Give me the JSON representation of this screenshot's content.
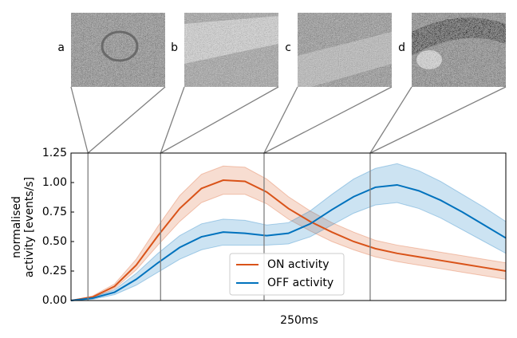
{
  "chart_data": {
    "type": "line",
    "ylabel": [
      "normalised",
      "activity [events/s]"
    ],
    "xlabel": "250ms",
    "xlim": [
      0,
      100
    ],
    "ylim": [
      0,
      1.25
    ],
    "yticks": [
      {
        "value": 0,
        "label": "0.00"
      },
      {
        "value": 0.25,
        "label": "0.25"
      },
      {
        "value": 0.5,
        "label": "0.50"
      },
      {
        "value": 0.75,
        "label": "0.75"
      },
      {
        "value": 1,
        "label": "1.00"
      },
      {
        "value": 1.25,
        "label": "1.25"
      }
    ],
    "x": [
      0,
      5,
      10,
      15,
      20,
      25,
      30,
      35,
      40,
      45,
      50,
      55,
      60,
      65,
      70,
      75,
      80,
      85,
      90,
      95,
      100
    ],
    "series": [
      {
        "name": "ON activity",
        "color": "#d95319",
        "values": [
          0,
          0.03,
          0.12,
          0.3,
          0.55,
          0.78,
          0.95,
          1.02,
          1.01,
          0.92,
          0.78,
          0.67,
          0.58,
          0.5,
          0.44,
          0.4,
          0.37,
          0.34,
          0.31,
          0.28,
          0.25
        ],
        "lower": [
          0,
          0.02,
          0.1,
          0.26,
          0.47,
          0.67,
          0.83,
          0.9,
          0.9,
          0.82,
          0.69,
          0.59,
          0.5,
          0.43,
          0.37,
          0.33,
          0.3,
          0.27,
          0.24,
          0.21,
          0.18
        ],
        "upper": [
          0,
          0.04,
          0.14,
          0.35,
          0.63,
          0.89,
          1.07,
          1.14,
          1.13,
          1.03,
          0.88,
          0.76,
          0.66,
          0.58,
          0.51,
          0.47,
          0.44,
          0.41,
          0.38,
          0.35,
          0.32
        ]
      },
      {
        "name": "OFF activity",
        "color": "#0072bd",
        "values": [
          0,
          0.02,
          0.07,
          0.18,
          0.32,
          0.45,
          0.54,
          0.58,
          0.57,
          0.55,
          0.57,
          0.65,
          0.77,
          0.88,
          0.96,
          0.98,
          0.93,
          0.85,
          0.75,
          0.64,
          0.53
        ],
        "lower": [
          0,
          0.01,
          0.05,
          0.13,
          0.24,
          0.35,
          0.43,
          0.47,
          0.47,
          0.47,
          0.48,
          0.54,
          0.64,
          0.74,
          0.81,
          0.83,
          0.78,
          0.7,
          0.6,
          0.5,
          0.4
        ],
        "upper": [
          0,
          0.03,
          0.09,
          0.23,
          0.4,
          0.55,
          0.65,
          0.69,
          0.68,
          0.64,
          0.66,
          0.76,
          0.9,
          1.03,
          1.12,
          1.16,
          1.1,
          1.01,
          0.9,
          0.79,
          0.67
        ]
      }
    ],
    "markers": [
      {
        "label": "a",
        "x": 3.9
      },
      {
        "label": "b",
        "x": 20.6
      },
      {
        "label": "c",
        "x": 44.4
      },
      {
        "label": "d",
        "x": 68.8
      }
    ],
    "legend": "lower center"
  }
}
